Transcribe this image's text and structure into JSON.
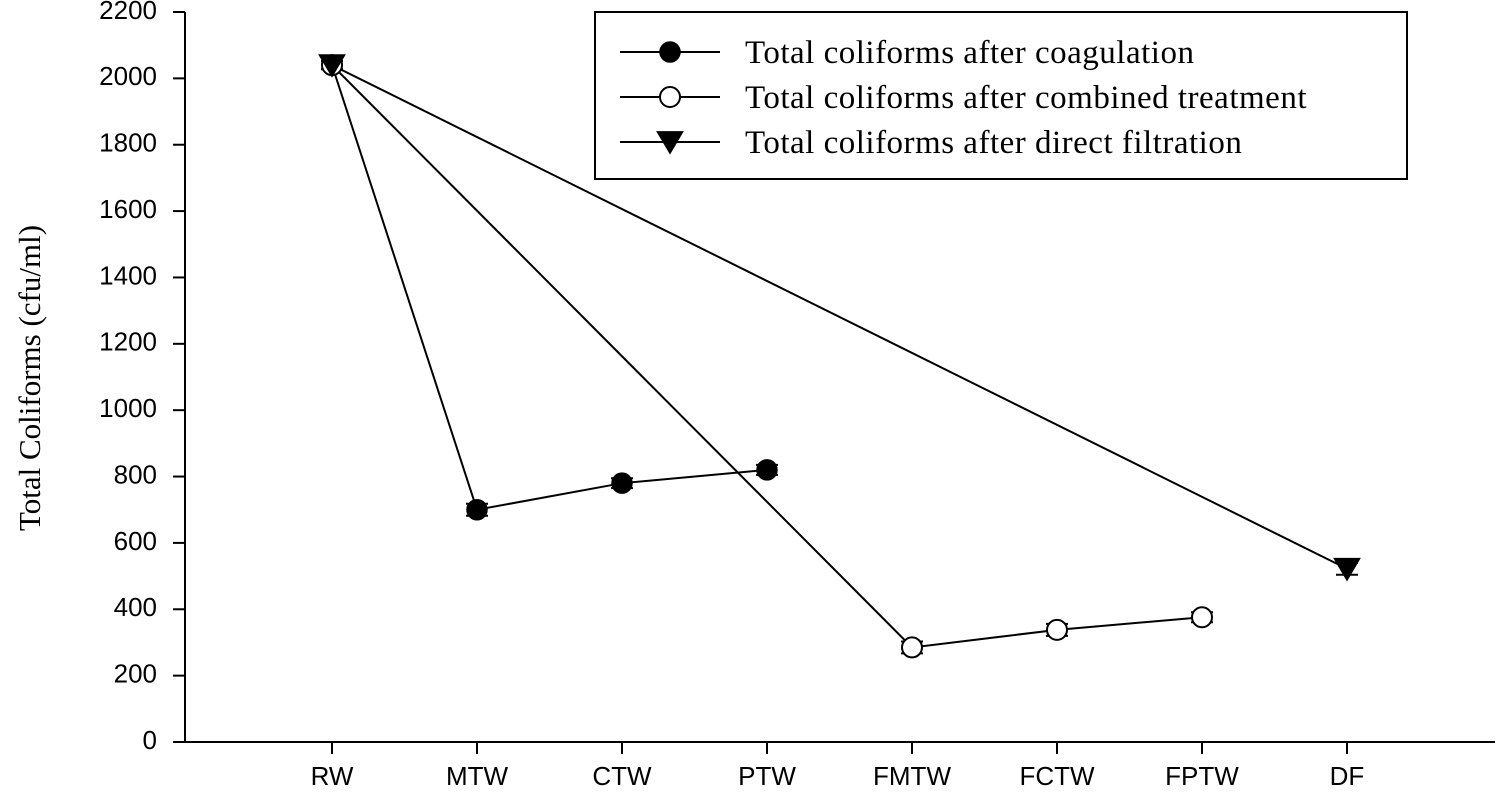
{
  "chart_data": {
    "type": "line",
    "title": "",
    "xlabel": "",
    "ylabel": "Total Coliforms (cfu/ml)",
    "categories": [
      "RW",
      "MTW",
      "CTW",
      "PTW",
      "FMTW",
      "FCTW",
      "FPTW",
      "DF"
    ],
    "ylim": [
      0,
      2200
    ],
    "yticks": [
      0,
      200,
      400,
      600,
      800,
      1000,
      1200,
      1400,
      1600,
      1800,
      2000,
      2200
    ],
    "grid": false,
    "legend_position": "top-right",
    "series": [
      {
        "name": "Total coliforms after coagulation",
        "marker": "filled-circle",
        "color": "#000000",
        "x": [
          "RW",
          "MTW",
          "CTW",
          "PTW"
        ],
        "y": [
          2040,
          700,
          780,
          820
        ],
        "error": [
          12,
          18,
          15,
          15
        ]
      },
      {
        "name": "Total coliforms after combined treatment",
        "marker": "open-circle",
        "color": "#000000",
        "x": [
          "RW",
          "FMTW",
          "FCTW",
          "FPTW"
        ],
        "y": [
          2040,
          285,
          338,
          376
        ],
        "error": [
          12,
          18,
          18,
          15
        ]
      },
      {
        "name": "Total coliforms after direct filtration",
        "marker": "filled-triangle-down",
        "color": "#000000",
        "x": [
          "RW",
          "DF"
        ],
        "y": [
          2040,
          522
        ],
        "error": [
          12,
          18
        ]
      }
    ]
  }
}
